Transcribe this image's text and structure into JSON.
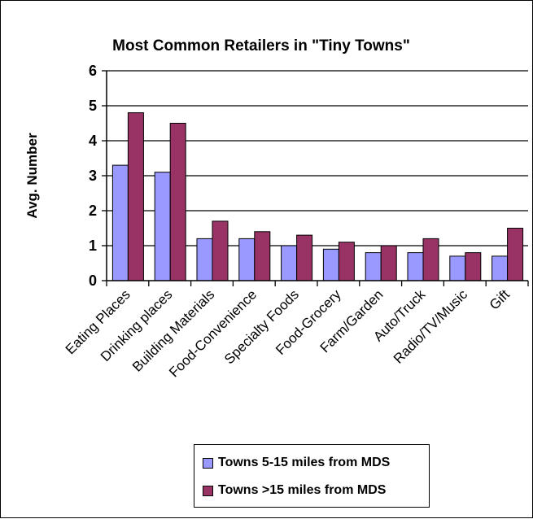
{
  "chart_data": {
    "type": "bar",
    "title": "Most Common Retailers in \"Tiny Towns\"",
    "xlabel": "",
    "ylabel": "Avg. Number",
    "ylim": [
      0,
      6
    ],
    "yticks": [
      "0",
      "1",
      "2",
      "3",
      "4",
      "5",
      "6"
    ],
    "grid": true,
    "legend_position": "bottom",
    "categories": [
      "Eating Places",
      "Drinking places",
      "Building Materials",
      "Food-Convenience",
      "Specialty Foods",
      "Food-Grocery",
      "Farm/Garden",
      "Auto/Truck",
      "Radio/TV/Music",
      "Gift"
    ],
    "series": [
      {
        "name": "Towns 5-15 miles from MDS",
        "color": "#9999ff",
        "values": [
          3.3,
          3.1,
          1.2,
          1.2,
          1.0,
          0.9,
          0.8,
          0.8,
          0.7,
          0.7
        ]
      },
      {
        "name": "Towns >15 miles from MDS",
        "color": "#993366",
        "values": [
          4.8,
          4.5,
          1.7,
          1.4,
          1.3,
          1.1,
          1.0,
          1.2,
          0.8,
          1.5
        ]
      }
    ]
  }
}
